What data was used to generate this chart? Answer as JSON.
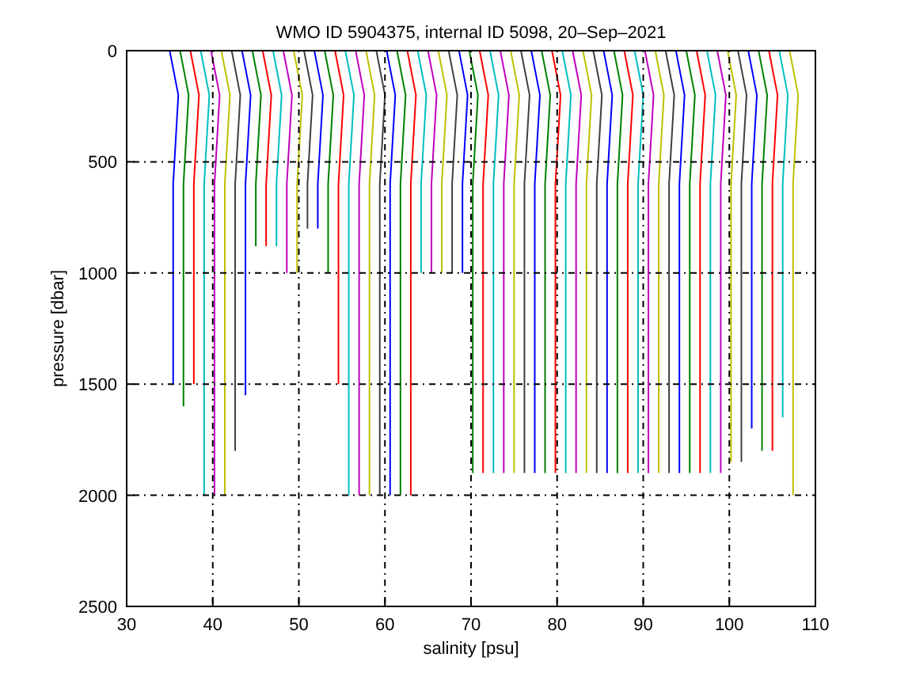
{
  "chart_data": {
    "type": "line",
    "title": "WMO ID 5904375, internal ID 5098, 20–Sep–2021",
    "xlabel": "salinity [psu]",
    "ylabel": "pressure [dbar]",
    "xlim": [
      30,
      110
    ],
    "xticks": [
      30,
      40,
      50,
      60,
      70,
      80,
      90,
      100,
      110
    ],
    "ylim": [
      2500,
      0
    ],
    "yticks": [
      0,
      500,
      1000,
      1500,
      2000,
      2500
    ],
    "grid": true,
    "marker": "none",
    "line_style": "solid",
    "series": [
      {
        "color": "#0000ff",
        "x": [
          35.0,
          36.0,
          35.4,
          35.4
        ],
        "values": [
          0,
          200,
          600,
          1500
        ]
      },
      {
        "color": "#008000",
        "x": [
          36.2,
          37.2,
          36.6,
          36.6
        ],
        "values": [
          0,
          200,
          600,
          1600
        ]
      },
      {
        "color": "#ff0000",
        "x": [
          37.4,
          38.4,
          37.8,
          37.8
        ],
        "values": [
          0,
          200,
          600,
          1500
        ]
      },
      {
        "color": "#00bfbf",
        "x": [
          38.6,
          39.6,
          39.0,
          39.0
        ],
        "values": [
          0,
          200,
          600,
          2000
        ]
      },
      {
        "color": "#bf00bf",
        "x": [
          39.8,
          40.8,
          40.2,
          40.2
        ],
        "values": [
          0,
          200,
          600,
          2000
        ]
      },
      {
        "color": "#bfbf00",
        "x": [
          41.0,
          42.0,
          41.4,
          41.4
        ],
        "values": [
          0,
          200,
          600,
          2000
        ]
      },
      {
        "color": "#404040",
        "x": [
          42.2,
          43.2,
          42.6,
          42.6
        ],
        "values": [
          0,
          200,
          600,
          1800
        ]
      },
      {
        "color": "#0000ff",
        "x": [
          43.4,
          44.4,
          43.8,
          43.8
        ],
        "values": [
          0,
          200,
          600,
          1550
        ]
      },
      {
        "color": "#008000",
        "x": [
          44.6,
          45.6,
          45.0,
          45.0
        ],
        "values": [
          0,
          200,
          600,
          880
        ]
      },
      {
        "color": "#ff0000",
        "x": [
          45.8,
          46.8,
          46.2,
          46.2
        ],
        "values": [
          0,
          200,
          600,
          880
        ]
      },
      {
        "color": "#00bfbf",
        "x": [
          47.0,
          48.0,
          47.4,
          47.4
        ],
        "values": [
          0,
          200,
          600,
          880
        ]
      },
      {
        "color": "#bf00bf",
        "x": [
          48.2,
          49.2,
          48.6,
          48.6
        ],
        "values": [
          0,
          200,
          600,
          1000
        ]
      },
      {
        "color": "#bfbf00",
        "x": [
          49.4,
          50.4,
          49.8,
          49.8
        ],
        "values": [
          0,
          200,
          600,
          1000
        ]
      },
      {
        "color": "#404040",
        "x": [
          50.6,
          51.6,
          51.0,
          51.0
        ],
        "values": [
          0,
          200,
          600,
          800
        ]
      },
      {
        "color": "#0000ff",
        "x": [
          51.8,
          52.8,
          52.2,
          52.2
        ],
        "values": [
          0,
          200,
          600,
          800
        ]
      },
      {
        "color": "#008000",
        "x": [
          53.0,
          54.0,
          53.4,
          53.4
        ],
        "values": [
          0,
          200,
          600,
          1000
        ]
      },
      {
        "color": "#ff0000",
        "x": [
          54.2,
          55.2,
          54.6,
          54.6
        ],
        "values": [
          0,
          200,
          600,
          1500
        ]
      },
      {
        "color": "#00bfbf",
        "x": [
          55.4,
          56.4,
          55.8,
          55.8
        ],
        "values": [
          0,
          200,
          600,
          2000
        ]
      },
      {
        "color": "#bf00bf",
        "x": [
          56.6,
          57.6,
          57.0,
          57.0
        ],
        "values": [
          0,
          200,
          600,
          2000
        ]
      },
      {
        "color": "#bfbf00",
        "x": [
          57.8,
          58.8,
          58.2,
          58.2
        ],
        "values": [
          0,
          200,
          600,
          2000
        ]
      },
      {
        "color": "#404040",
        "x": [
          59.0,
          60.0,
          59.4,
          59.4
        ],
        "values": [
          0,
          200,
          600,
          2000
        ]
      },
      {
        "color": "#0000ff",
        "x": [
          60.2,
          61.2,
          60.6,
          60.6
        ],
        "values": [
          0,
          200,
          600,
          2000
        ]
      },
      {
        "color": "#008000",
        "x": [
          61.4,
          62.4,
          61.8,
          61.8
        ],
        "values": [
          0,
          200,
          600,
          2000
        ]
      },
      {
        "color": "#ff0000",
        "x": [
          62.6,
          63.6,
          63.0,
          63.0
        ],
        "values": [
          0,
          200,
          600,
          2000
        ]
      },
      {
        "color": "#00bfbf",
        "x": [
          63.8,
          64.8,
          64.2,
          64.2
        ],
        "values": [
          0,
          200,
          600,
          1000
        ]
      },
      {
        "color": "#bf00bf",
        "x": [
          65.0,
          66.0,
          65.4,
          65.4
        ],
        "values": [
          0,
          200,
          600,
          1000
        ]
      },
      {
        "color": "#bfbf00",
        "x": [
          66.2,
          67.2,
          66.6,
          66.6
        ],
        "values": [
          0,
          200,
          600,
          1000
        ]
      },
      {
        "color": "#404040",
        "x": [
          67.4,
          68.4,
          67.8,
          67.8
        ],
        "values": [
          0,
          200,
          600,
          1000
        ]
      },
      {
        "color": "#0000ff",
        "x": [
          68.6,
          69.6,
          69.0,
          69.0
        ],
        "values": [
          0,
          200,
          600,
          1000
        ]
      },
      {
        "color": "#008000",
        "x": [
          69.8,
          70.8,
          70.2,
          70.2
        ],
        "values": [
          0,
          200,
          600,
          1900
        ]
      },
      {
        "color": "#ff0000",
        "x": [
          71.0,
          72.0,
          71.4,
          71.4
        ],
        "values": [
          0,
          200,
          600,
          1900
        ]
      },
      {
        "color": "#00bfbf",
        "x": [
          72.2,
          73.2,
          72.6,
          72.6
        ],
        "values": [
          0,
          200,
          600,
          1900
        ]
      },
      {
        "color": "#bf00bf",
        "x": [
          73.4,
          74.4,
          73.8,
          73.8
        ],
        "values": [
          0,
          200,
          600,
          1900
        ]
      },
      {
        "color": "#bfbf00",
        "x": [
          74.6,
          75.6,
          75.0,
          75.0
        ],
        "values": [
          0,
          200,
          600,
          1900
        ]
      },
      {
        "color": "#404040",
        "x": [
          75.8,
          76.8,
          76.2,
          76.2
        ],
        "values": [
          0,
          200,
          600,
          1900
        ]
      },
      {
        "color": "#0000ff",
        "x": [
          77.0,
          78.0,
          77.4,
          77.4
        ],
        "values": [
          0,
          200,
          600,
          1900
        ]
      },
      {
        "color": "#008000",
        "x": [
          78.2,
          79.2,
          78.6,
          78.6
        ],
        "values": [
          0,
          200,
          600,
          1900
        ]
      },
      {
        "color": "#ff0000",
        "x": [
          79.4,
          80.4,
          79.8,
          79.8
        ],
        "values": [
          0,
          200,
          600,
          1900
        ]
      },
      {
        "color": "#00bfbf",
        "x": [
          80.6,
          81.6,
          81.0,
          81.0
        ],
        "values": [
          0,
          200,
          600,
          1900
        ]
      },
      {
        "color": "#bf00bf",
        "x": [
          81.8,
          82.8,
          82.2,
          82.2
        ],
        "values": [
          0,
          200,
          600,
          1900
        ]
      },
      {
        "color": "#bfbf00",
        "x": [
          83.0,
          84.0,
          83.4,
          83.4
        ],
        "values": [
          0,
          200,
          600,
          1900
        ]
      },
      {
        "color": "#404040",
        "x": [
          84.2,
          85.2,
          84.6,
          84.6
        ],
        "values": [
          0,
          200,
          600,
          1900
        ]
      },
      {
        "color": "#0000ff",
        "x": [
          85.4,
          86.4,
          85.8,
          85.8
        ],
        "values": [
          0,
          200,
          600,
          1900
        ]
      },
      {
        "color": "#008000",
        "x": [
          86.6,
          87.6,
          87.0,
          87.0
        ],
        "values": [
          0,
          200,
          600,
          1900
        ]
      },
      {
        "color": "#ff0000",
        "x": [
          87.8,
          88.8,
          88.2,
          88.2
        ],
        "values": [
          0,
          200,
          600,
          1900
        ]
      },
      {
        "color": "#00bfbf",
        "x": [
          89.0,
          90.0,
          89.4,
          89.4
        ],
        "values": [
          0,
          200,
          600,
          1900
        ]
      },
      {
        "color": "#bf00bf",
        "x": [
          90.2,
          91.2,
          90.6,
          90.6
        ],
        "values": [
          0,
          200,
          600,
          1900
        ]
      },
      {
        "color": "#bfbf00",
        "x": [
          91.4,
          92.4,
          91.8,
          91.8
        ],
        "values": [
          0,
          200,
          600,
          1900
        ]
      },
      {
        "color": "#404040",
        "x": [
          92.6,
          93.6,
          93.0,
          93.0
        ],
        "values": [
          0,
          200,
          600,
          1900
        ]
      },
      {
        "color": "#0000ff",
        "x": [
          93.8,
          94.8,
          94.2,
          94.2
        ],
        "values": [
          0,
          200,
          600,
          1900
        ]
      },
      {
        "color": "#008000",
        "x": [
          95.0,
          96.0,
          95.4,
          95.4
        ],
        "values": [
          0,
          200,
          600,
          1900
        ]
      },
      {
        "color": "#ff0000",
        "x": [
          96.2,
          97.2,
          96.6,
          96.6
        ],
        "values": [
          0,
          200,
          600,
          1900
        ]
      },
      {
        "color": "#00bfbf",
        "x": [
          97.4,
          98.4,
          97.8,
          97.8
        ],
        "values": [
          0,
          200,
          600,
          1900
        ]
      },
      {
        "color": "#bf00bf",
        "x": [
          98.6,
          99.6,
          99.0,
          99.0
        ],
        "values": [
          0,
          200,
          600,
          1900
        ]
      },
      {
        "color": "#bfbf00",
        "x": [
          99.8,
          100.8,
          100.2,
          100.2
        ],
        "values": [
          0,
          200,
          600,
          1850
        ]
      },
      {
        "color": "#404040",
        "x": [
          101.0,
          102.0,
          101.4,
          101.4
        ],
        "values": [
          0,
          200,
          600,
          1850
        ]
      },
      {
        "color": "#0000ff",
        "x": [
          102.2,
          103.2,
          102.6,
          102.6
        ],
        "values": [
          0,
          200,
          600,
          1700
        ]
      },
      {
        "color": "#008000",
        "x": [
          103.4,
          104.4,
          103.8,
          103.8
        ],
        "values": [
          0,
          200,
          600,
          1800
        ]
      },
      {
        "color": "#ff0000",
        "x": [
          104.6,
          105.6,
          105.0,
          105.0
        ],
        "values": [
          0,
          200,
          600,
          1800
        ]
      },
      {
        "color": "#00bfbf",
        "x": [
          105.8,
          106.8,
          106.2,
          106.2
        ],
        "values": [
          0,
          200,
          600,
          1650
        ]
      },
      {
        "color": "#bfbf00",
        "x": [
          107.0,
          108.0,
          107.4,
          107.4
        ],
        "values": [
          0,
          200,
          600,
          2000
        ]
      }
    ]
  }
}
